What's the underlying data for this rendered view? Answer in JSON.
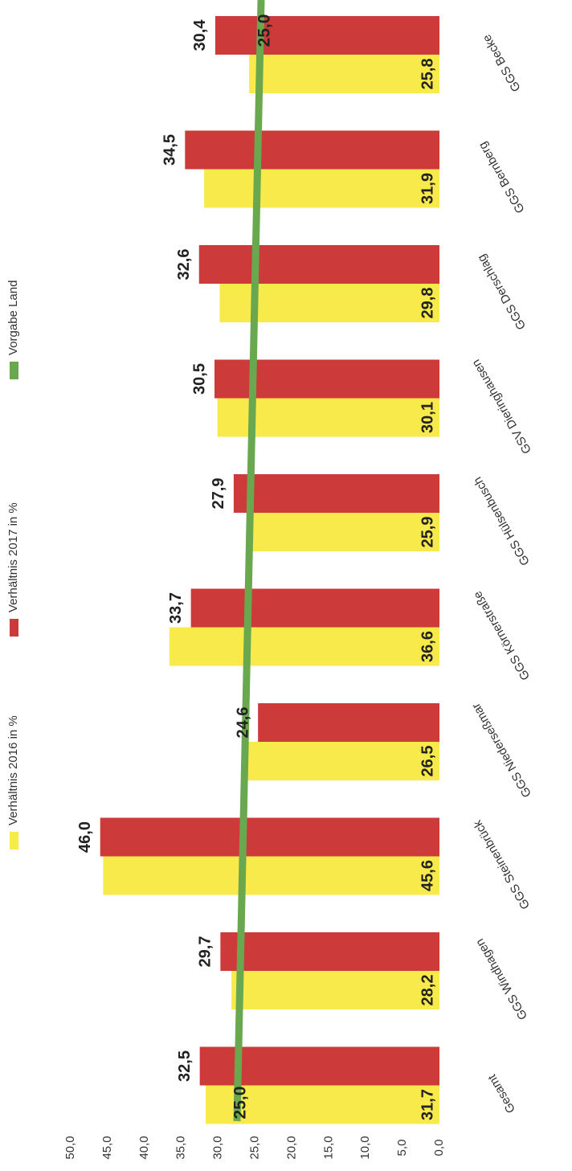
{
  "chart_data": {
    "type": "bar",
    "categories": [
      "GGS Becke",
      "GGS Bernberg",
      "GGS Derschlag",
      "GSV Dieringhausen",
      "GGS Hülsenbusch",
      "GGS Körnerstraße",
      "GGS Niederseßmar",
      "GGS Steinenbrück",
      "GGS Windhagen",
      "Gesamt"
    ],
    "series": [
      {
        "name": "Verhältnis 2016 in %",
        "color": "#f7ea4a",
        "values": [
          25.8,
          31.9,
          29.8,
          30.1,
          25.9,
          36.6,
          26.5,
          45.6,
          28.2,
          31.7
        ],
        "labels": [
          "25,8",
          "31,9",
          "29,8",
          "30,1",
          "25,9",
          "36,6",
          "26,5",
          "45,6",
          "28,2",
          "31,7"
        ]
      },
      {
        "name": "Verhältnis 2017 in %",
        "color": "#cc3a3a",
        "values": [
          30.4,
          34.5,
          32.6,
          30.5,
          27.9,
          33.7,
          24.6,
          46.0,
          29.7,
          32.5
        ],
        "labels": [
          "30,4",
          "34,5",
          "32,6",
          "30,5",
          "27,9",
          "33,7",
          "24,6",
          "46,0",
          "29,7",
          "32,5"
        ]
      },
      {
        "name": "Vorgabe Land",
        "type": "line",
        "color": "#6aa84f",
        "values": [
          25,
          25,
          25,
          25,
          25,
          25,
          25,
          25,
          25,
          25
        ],
        "labels": [
          "25,0",
          "25,0"
        ]
      }
    ],
    "yticks": [
      "0,0",
      "5,0",
      "10,0",
      "15,0",
      "20,0",
      "25,0",
      "30,0",
      "35,0",
      "40,0",
      "45,0",
      "50,0"
    ],
    "ylim": [
      0,
      50
    ],
    "grid": false,
    "legend": "top",
    "orientation": "rotated (value axis horizontal, categories top-to-bottom)"
  }
}
